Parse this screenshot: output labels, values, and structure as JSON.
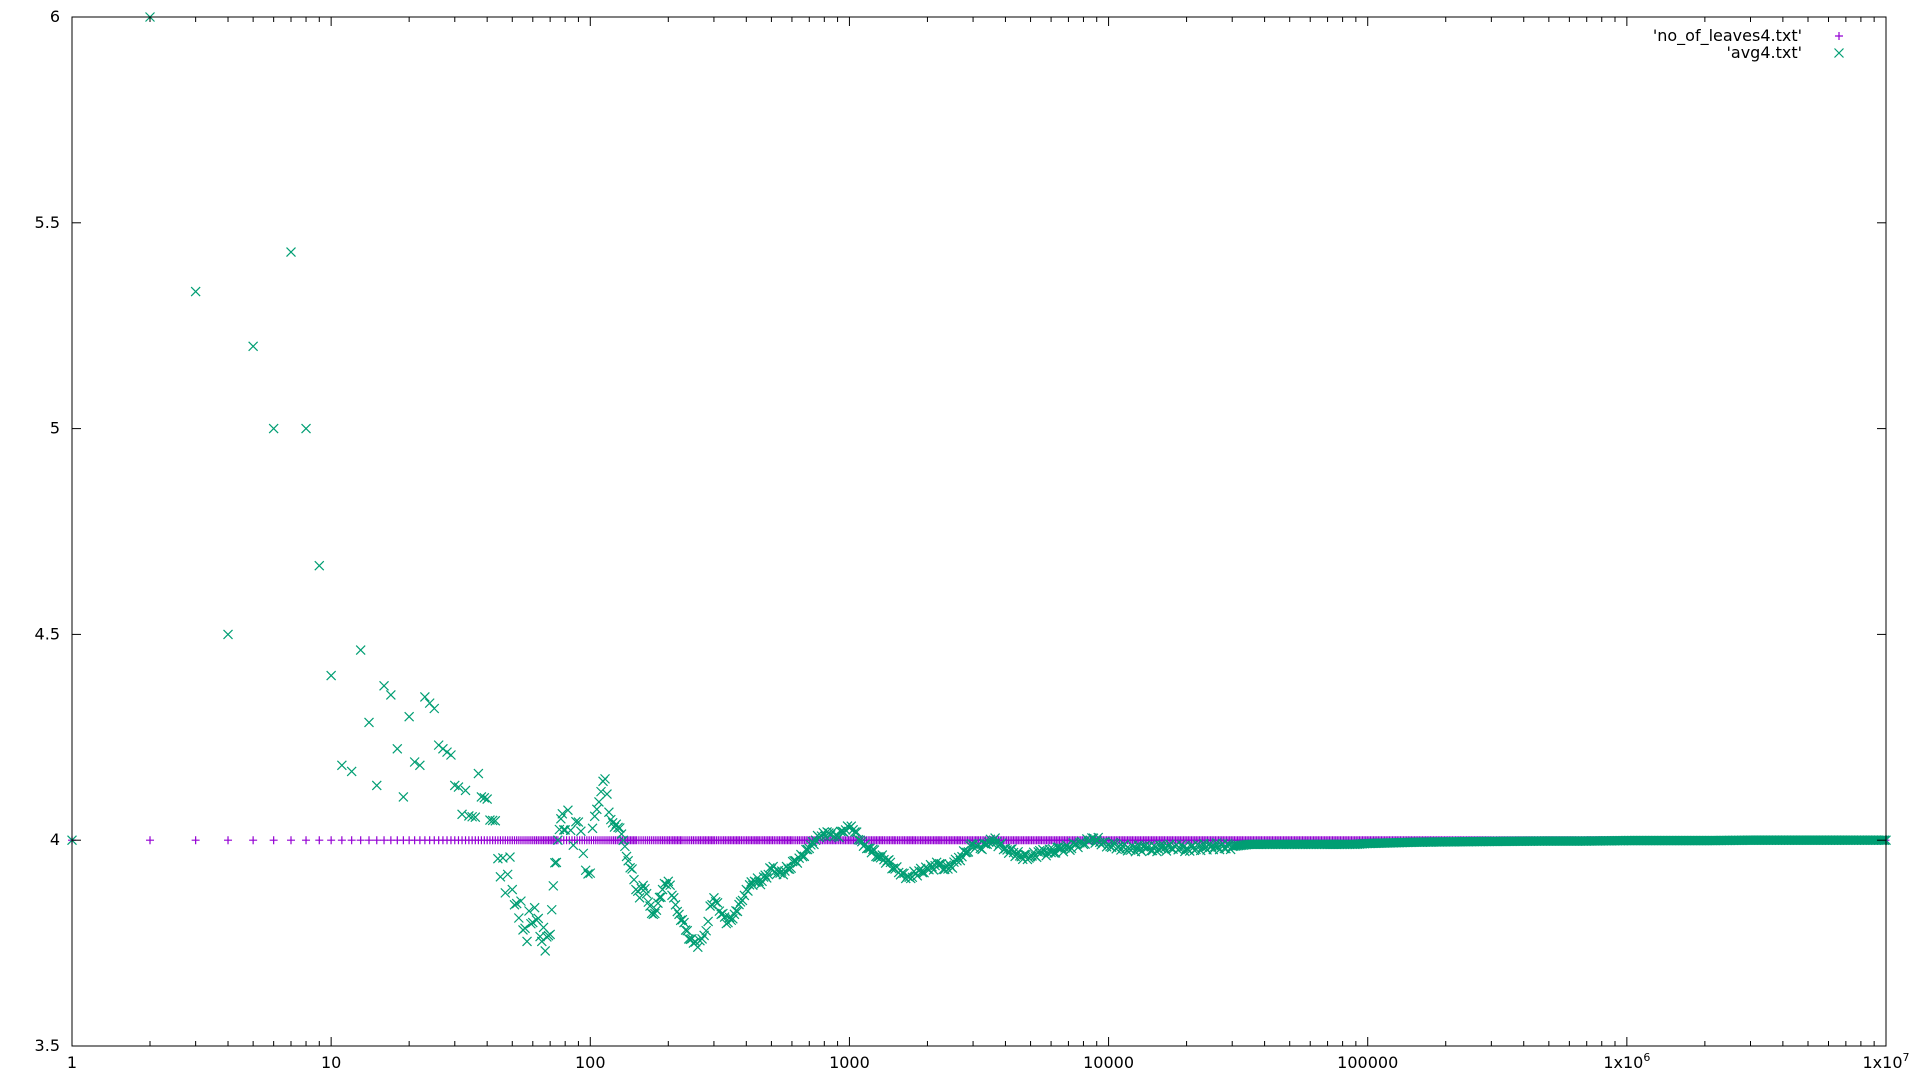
{
  "chart_data": {
    "type": "scatter",
    "xscale": "log",
    "xlim": [
      1,
      10000000
    ],
    "ylim": [
      3.5,
      6
    ],
    "grid": false,
    "legend_position": "top-right",
    "x_ticks": [
      {
        "value": 1,
        "label": "1"
      },
      {
        "value": 10,
        "label": "10"
      },
      {
        "value": 100,
        "label": "100"
      },
      {
        "value": 1000,
        "label": "1000"
      },
      {
        "value": 10000,
        "label": "10000"
      },
      {
        "value": 100000,
        "label": "100000"
      },
      {
        "value": 1000000,
        "label": "1x10",
        "sup": "6"
      },
      {
        "value": 10000000,
        "label": "1x10",
        "sup": "7"
      }
    ],
    "y_ticks": [
      {
        "value": 3.5,
        "label": "3.5"
      },
      {
        "value": 4,
        "label": "4"
      },
      {
        "value": 4.5,
        "label": "4.5"
      },
      {
        "value": 5,
        "label": "5"
      },
      {
        "value": 5.5,
        "label": "5.5"
      },
      {
        "value": 6,
        "label": "6"
      }
    ],
    "series": [
      {
        "name": "'no_of_leaves4.txt'",
        "marker": "plus",
        "color": "#9400d3",
        "x_range": [
          1,
          10000000
        ],
        "constant_value": 4
      },
      {
        "name": "'avg4.txt'",
        "marker": "x",
        "color": "#009e73",
        "points": [
          [
            1,
            4
          ],
          [
            2,
            6
          ],
          [
            3,
            5.333
          ],
          [
            4,
            4.5
          ],
          [
            5,
            5.2
          ],
          [
            6,
            5
          ],
          [
            7,
            5.429
          ],
          [
            8,
            5
          ],
          [
            9,
            4.667
          ],
          [
            10,
            4.4
          ],
          [
            11,
            4.182
          ],
          [
            12,
            4.167
          ],
          [
            13,
            4.462
          ],
          [
            14,
            4.286
          ],
          [
            15,
            4.133
          ],
          [
            16,
            4.375
          ],
          [
            17,
            4.353
          ],
          [
            18,
            4.222
          ],
          [
            19,
            4.105
          ],
          [
            20,
            4.3
          ],
          [
            21,
            4.19
          ],
          [
            22,
            4.182
          ],
          [
            23,
            4.348
          ],
          [
            24,
            4.333
          ],
          [
            25,
            4.32
          ],
          [
            26,
            4.231
          ],
          [
            27,
            4.222
          ],
          [
            28,
            4.214
          ],
          [
            29,
            4.207
          ],
          [
            30,
            4.133
          ],
          [
            31,
            4.129
          ],
          [
            32,
            4.063
          ],
          [
            33,
            4.121
          ],
          [
            34,
            4.059
          ],
          [
            35,
            4.057
          ],
          [
            36,
            4.056
          ],
          [
            37,
            4.162
          ],
          [
            38,
            4.105
          ],
          [
            39,
            4.103
          ],
          [
            40,
            4.1
          ],
          [
            41,
            4.049
          ],
          [
            42,
            4.048
          ],
          [
            43,
            4.047
          ],
          [
            44,
            3.955
          ],
          [
            45,
            3.911
          ],
          [
            46,
            3.957
          ],
          [
            47,
            3.872
          ],
          [
            48,
            3.917
          ],
          [
            49,
            3.959
          ],
          [
            50,
            3.88
          ],
          [
            51,
            3.843
          ],
          [
            52,
            3.846
          ],
          [
            53,
            3.811
          ],
          [
            54,
            3.852
          ],
          [
            55,
            3.782
          ],
          [
            56,
            3.786
          ],
          [
            57,
            3.754
          ],
          [
            58,
            3.828
          ],
          [
            59,
            3.797
          ],
          [
            60,
            3.8
          ],
          [
            61,
            3.836
          ],
          [
            62,
            3.806
          ],
          [
            63,
            3.81
          ],
          [
            64,
            3.766
          ],
          [
            65,
            3.754
          ],
          [
            66,
            3.788
          ],
          [
            67,
            3.731
          ],
          [
            68,
            3.765
          ],
          [
            69,
            3.768
          ],
          [
            70,
            3.771
          ],
          [
            71,
            3.831
          ],
          [
            72,
            3.889
          ],
          [
            73,
            3.945
          ],
          [
            74,
            3.946
          ],
          [
            75,
            4
          ],
          [
            76,
            4.026
          ],
          [
            77,
            4.052
          ],
          [
            78,
            4.064
          ],
          [
            79,
            4.025
          ],
          [
            80,
            4.025
          ],
          [
            82,
            4.073
          ],
          [
            84,
            4.024
          ],
          [
            86,
            3.988
          ],
          [
            88,
            4.045
          ],
          [
            90,
            4.044
          ],
          [
            92,
            4.022
          ],
          [
            94,
            3.968
          ],
          [
            96,
            3.927
          ],
          [
            98,
            3.918
          ],
          [
            100,
            3.92
          ],
          [
            102,
            4.029
          ],
          [
            104,
            4.058
          ],
          [
            106,
            4.075
          ],
          [
            108,
            4.093
          ],
          [
            110,
            4.118
          ],
          [
            112,
            4.143
          ],
          [
            114,
            4.149
          ],
          [
            116,
            4.112
          ],
          [
            118,
            4.068
          ],
          [
            120,
            4.05
          ],
          [
            124,
            4.032
          ],
          [
            128,
            4.031
          ],
          [
            132,
            4.015
          ],
          [
            136,
            3.985
          ],
          [
            140,
            3.95
          ],
          [
            145,
            3.93
          ],
          [
            150,
            3.88
          ],
          [
            155,
            3.86
          ],
          [
            160,
            3.89
          ],
          [
            165,
            3.87
          ],
          [
            170,
            3.84
          ],
          [
            175,
            3.82
          ],
          [
            180,
            3.83
          ],
          [
            190,
            3.88
          ],
          [
            200,
            3.9
          ],
          [
            210,
            3.86
          ],
          [
            220,
            3.82
          ],
          [
            230,
            3.8
          ],
          [
            240,
            3.76
          ],
          [
            250,
            3.75
          ],
          [
            260,
            3.74
          ],
          [
            270,
            3.76
          ],
          [
            280,
            3.78
          ],
          [
            290,
            3.84
          ],
          [
            300,
            3.86
          ],
          [
            320,
            3.82
          ],
          [
            340,
            3.8
          ],
          [
            360,
            3.82
          ],
          [
            380,
            3.85
          ],
          [
            400,
            3.88
          ],
          [
            430,
            3.9
          ],
          [
            460,
            3.9
          ],
          [
            500,
            3.93
          ],
          [
            540,
            3.92
          ],
          [
            580,
            3.93
          ],
          [
            620,
            3.95
          ],
          [
            660,
            3.96
          ],
          [
            700,
            3.98
          ],
          [
            740,
            4
          ],
          [
            780,
            4.01
          ],
          [
            820,
            4.02
          ],
          [
            860,
            4.02
          ],
          [
            900,
            4.01
          ],
          [
            950,
            4.02
          ],
          [
            1000,
            4.03
          ],
          [
            1050,
            4.02
          ],
          [
            1100,
            4
          ],
          [
            1150,
            3.99
          ],
          [
            1200,
            3.98
          ],
          [
            1300,
            3.96
          ],
          [
            1400,
            3.95
          ],
          [
            1500,
            3.93
          ],
          [
            1600,
            3.92
          ],
          [
            1700,
            3.91
          ],
          [
            1800,
            3.92
          ],
          [
            2000,
            3.93
          ],
          [
            2200,
            3.94
          ],
          [
            2400,
            3.93
          ],
          [
            2600,
            3.95
          ],
          [
            2800,
            3.97
          ],
          [
            3000,
            3.99
          ],
          [
            3200,
            3.98
          ],
          [
            3400,
            3.99
          ],
          [
            3600,
            4
          ],
          [
            3800,
            3.99
          ],
          [
            4000,
            3.98
          ],
          [
            4300,
            3.97
          ],
          [
            4600,
            3.96
          ],
          [
            5000,
            3.96
          ],
          [
            5500,
            3.97
          ],
          [
            6000,
            3.97
          ],
          [
            6500,
            3.98
          ],
          [
            7000,
            3.98
          ],
          [
            7500,
            3.99
          ],
          [
            8000,
            3.99
          ],
          [
            8500,
            4
          ],
          [
            9000,
            4
          ],
          [
            9500,
            3.995
          ],
          [
            10000,
            3.99
          ],
          [
            11000,
            3.985
          ],
          [
            12000,
            3.98
          ],
          [
            14000,
            3.98
          ],
          [
            16000,
            3.98
          ],
          [
            18000,
            3.985
          ],
          [
            20000,
            3.98
          ],
          [
            25000,
            3.985
          ],
          [
            30000,
            3.985
          ],
          [
            35000,
            3.99
          ],
          [
            40000,
            3.99
          ],
          [
            50000,
            3.99
          ],
          [
            60000,
            3.99
          ],
          [
            70000,
            3.99
          ],
          [
            80000,
            3.99
          ],
          [
            90000,
            3.99
          ],
          [
            100000,
            3.992
          ],
          [
            150000,
            3.995
          ],
          [
            200000,
            3.996
          ],
          [
            300000,
            3.997
          ],
          [
            500000,
            3.998
          ],
          [
            700000,
            3.998
          ],
          [
            1000000,
            3.999
          ],
          [
            2000000,
            3.999
          ],
          [
            3000000,
            4
          ],
          [
            5000000,
            4
          ],
          [
            7000000,
            4
          ],
          [
            10000000,
            4
          ]
        ]
      }
    ]
  }
}
